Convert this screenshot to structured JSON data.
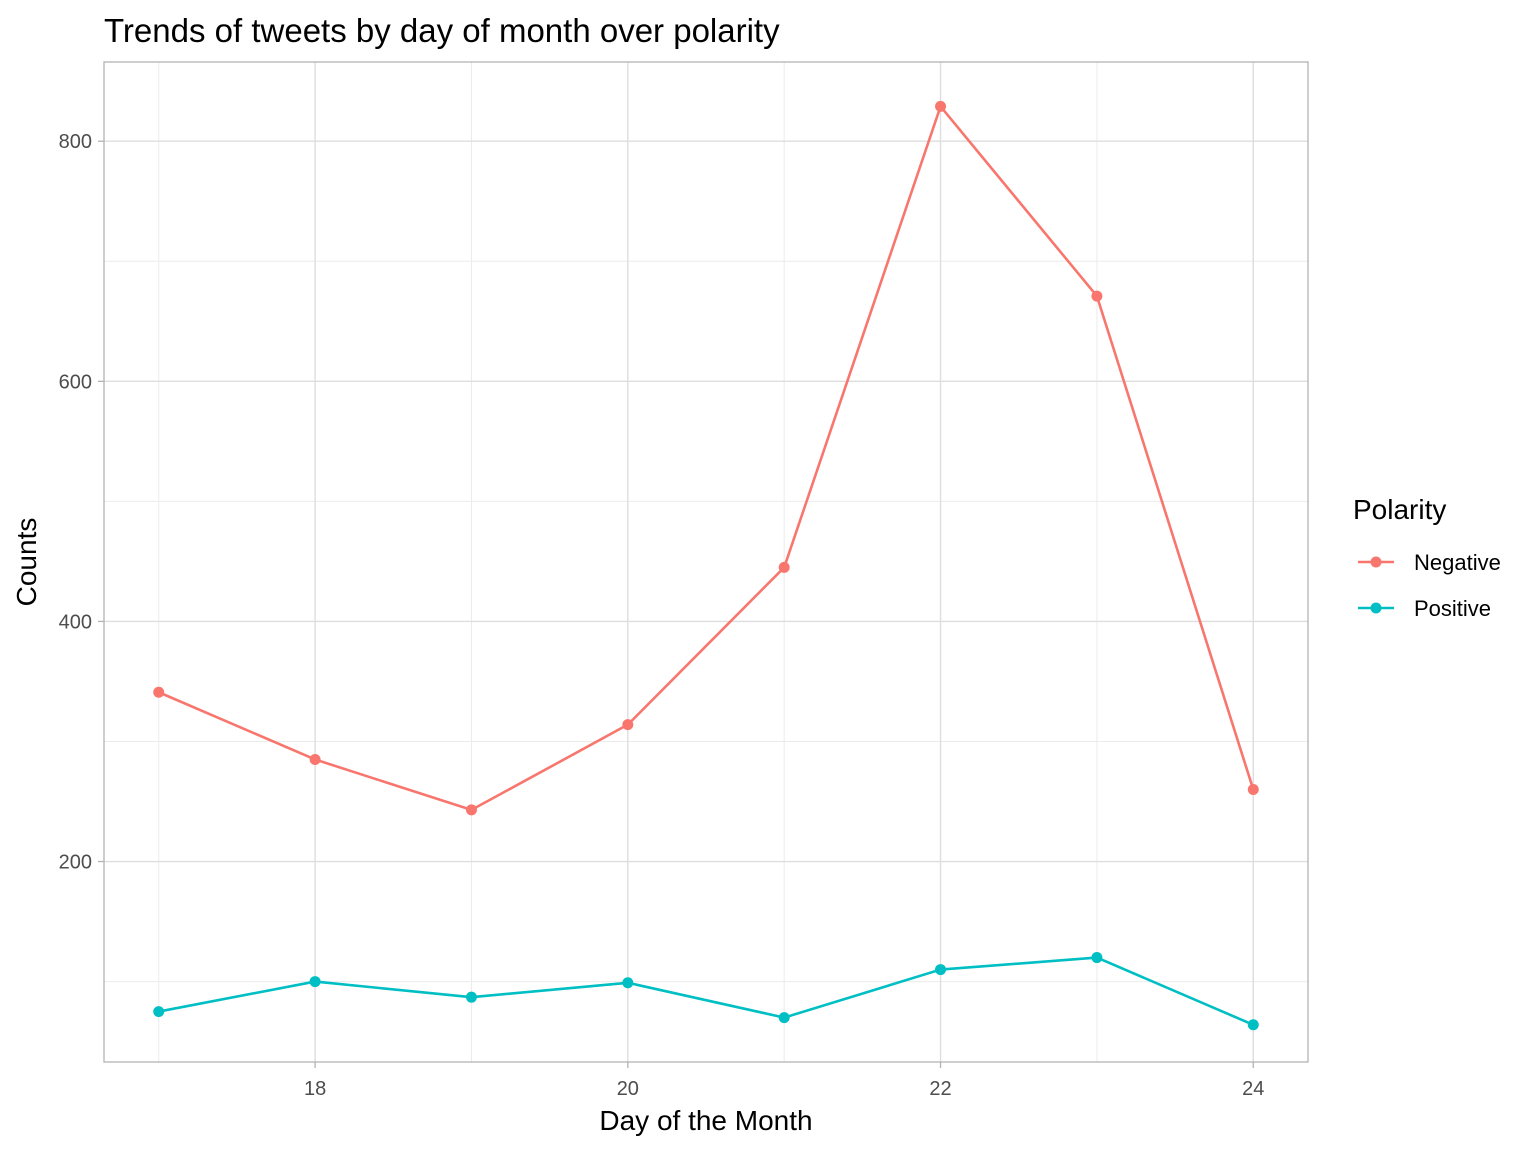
{
  "chart_data": {
    "type": "line",
    "title": "Trends of tweets by day of month over polarity",
    "xlabel": "Day of the Month",
    "ylabel": "Counts",
    "x": [
      17,
      18,
      19,
      20,
      21,
      22,
      23,
      24
    ],
    "xlim": [
      16.65,
      24.35
    ],
    "ylim": [
      33,
      866
    ],
    "xticks": [
      18,
      20,
      22,
      24
    ],
    "yticks": [
      200,
      400,
      600,
      800
    ],
    "x_minor_grid": [
      17,
      19,
      21,
      23
    ],
    "y_minor_grid": [
      100,
      300,
      500,
      700
    ],
    "grid": true,
    "legend": {
      "title": "Polarity",
      "position": "right"
    },
    "series": [
      {
        "name": "Negative",
        "color": "#F8766D",
        "values": [
          341,
          285,
          243,
          314,
          445,
          829,
          671,
          260
        ]
      },
      {
        "name": "Positive",
        "color": "#00BFC4",
        "values": [
          75,
          100,
          87,
          99,
          70,
          110,
          120,
          64
        ]
      }
    ]
  }
}
